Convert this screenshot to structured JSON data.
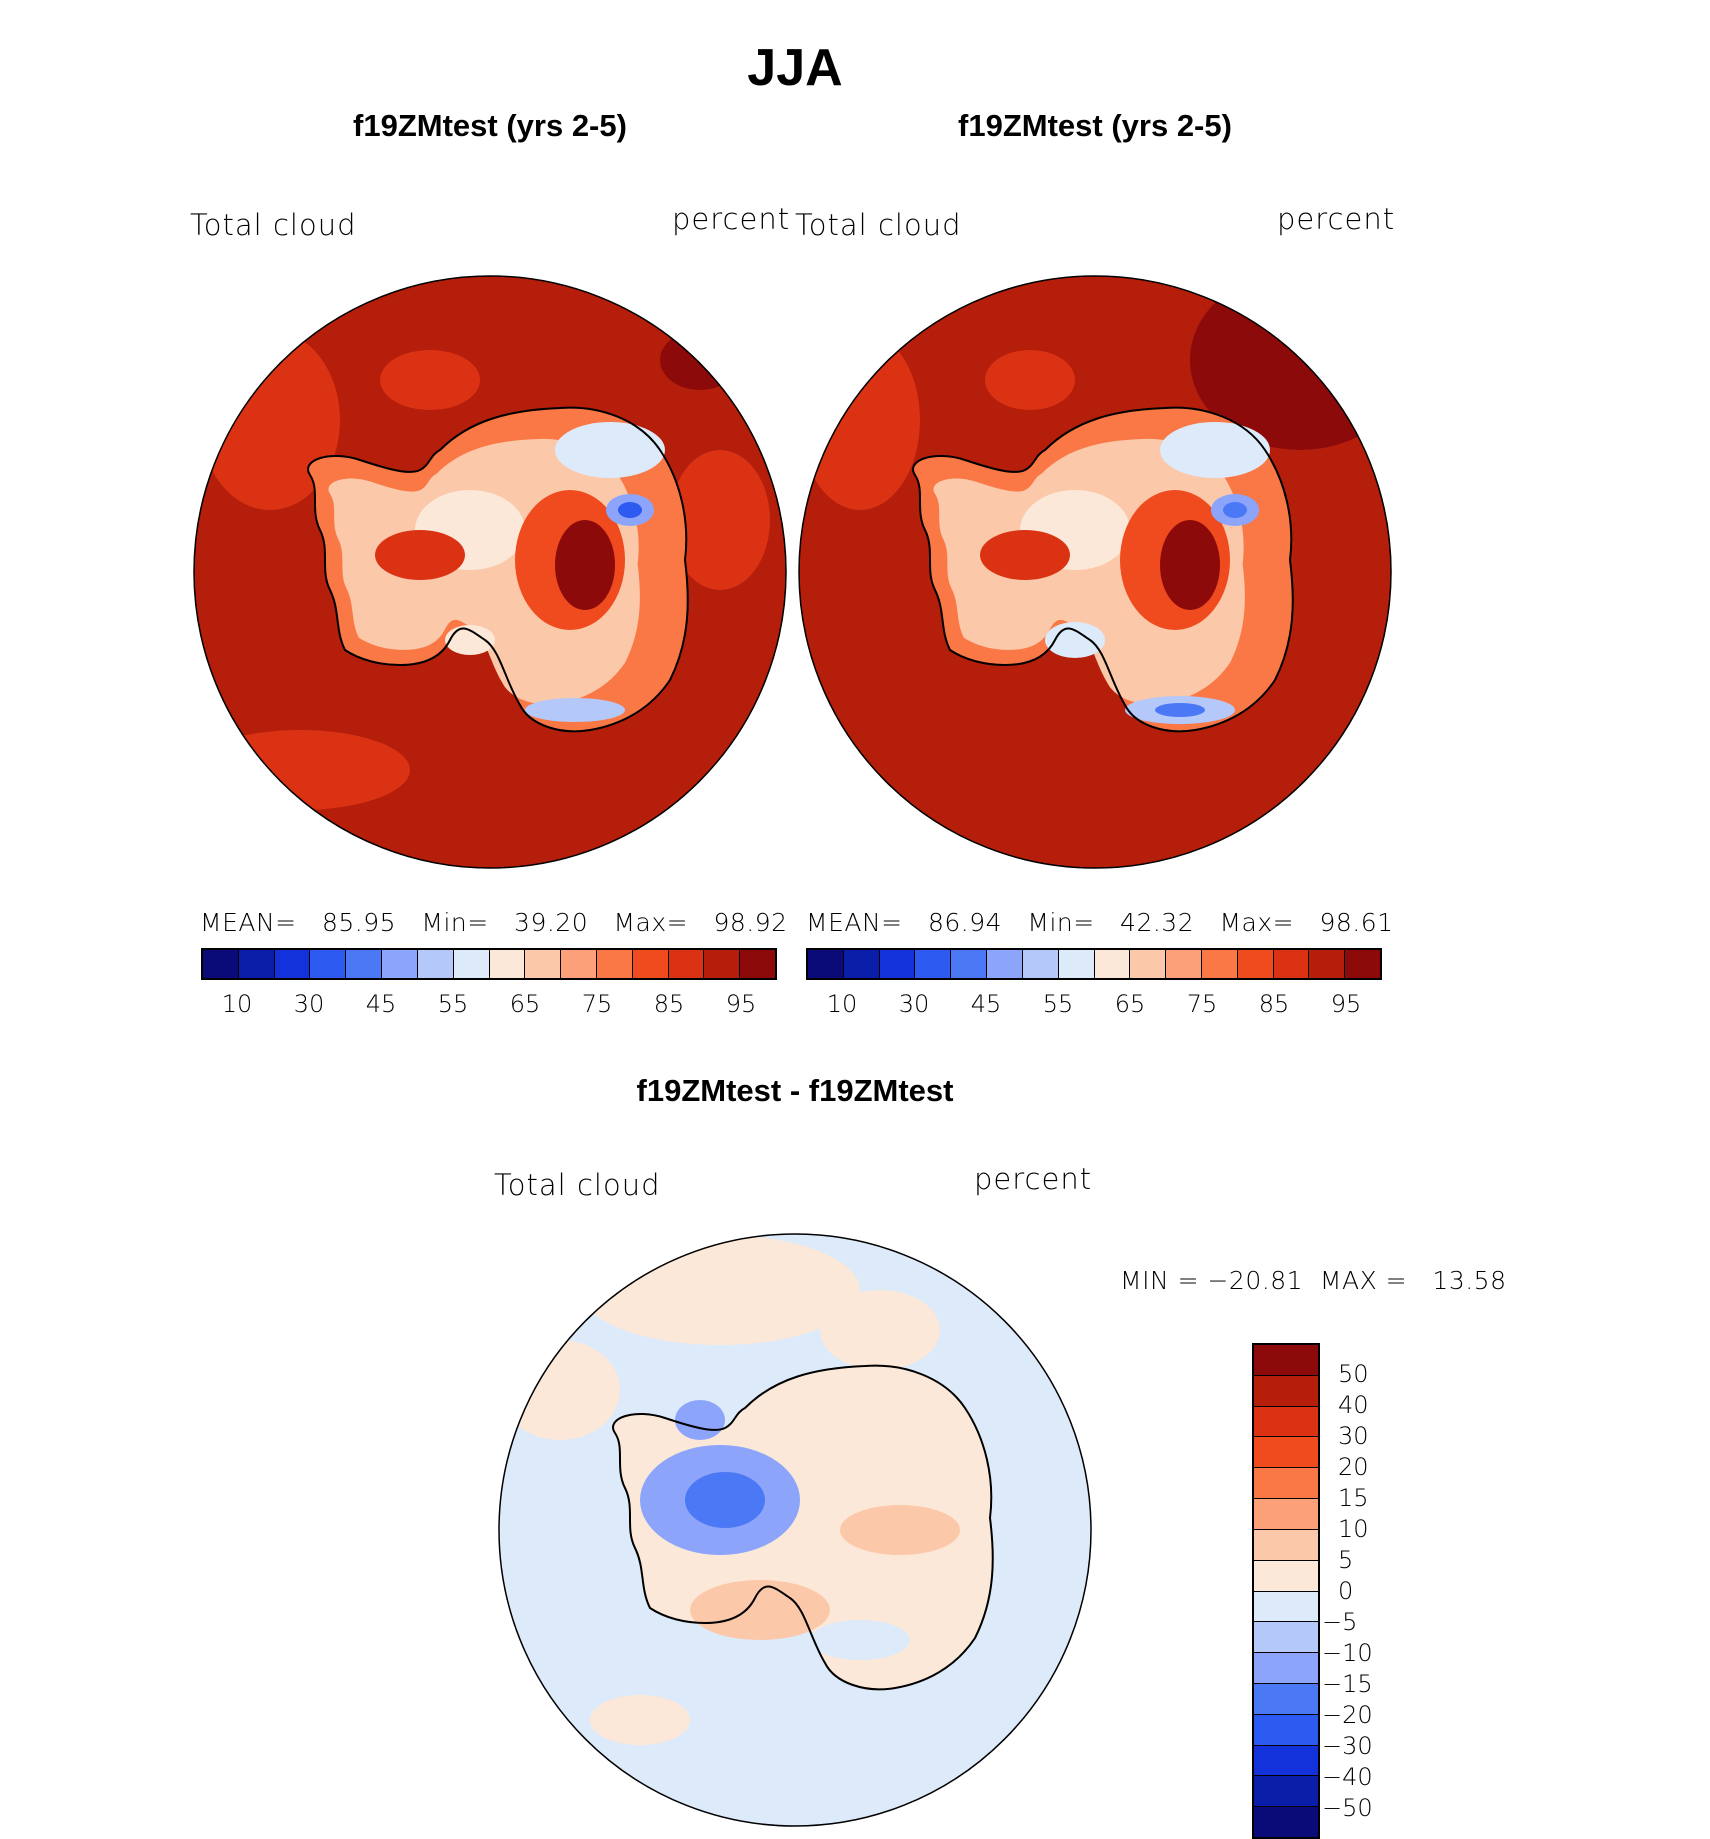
{
  "figure": {
    "season_title": "JJA",
    "panels": [
      {
        "title": "f19ZMtest (yrs 2-5)",
        "variable_label": "Total cloud",
        "units_label": "percent",
        "stats": {
          "mean_label": "MEAN=",
          "mean": "85.95",
          "min_label": "Min=",
          "min": "39.20",
          "max_label": "Max=",
          "max": "98.92"
        }
      },
      {
        "title": "f19ZMtest (yrs 2-5)",
        "variable_label": "Total cloud",
        "units_label": "percent",
        "stats": {
          "mean_label": "MEAN=",
          "mean": "86.94",
          "min_label": "Min=",
          "min": "42.32",
          "max_label": "Max=",
          "max": "98.61"
        }
      }
    ],
    "diff_panel": {
      "title": "f19ZMtest - f19ZMtest",
      "variable_label": "Total cloud",
      "units_label": "percent",
      "minmax_text": "MIN = −20.81  MAX =   13.58"
    },
    "colorbar_main": {
      "colors": [
        "#0a0a78",
        "#0a1eaa",
        "#1432dc",
        "#2d5af0",
        "#4b78f5",
        "#8ca5fa",
        "#b4c8fa",
        "#dceafa",
        "#fce8d8",
        "#fcc8aa",
        "#fca07a",
        "#fa7846",
        "#f04b1e",
        "#dc3214",
        "#b41e0a",
        "#8c0a0a"
      ],
      "tick_labels": [
        "10",
        "30",
        "45",
        "55",
        "65",
        "75",
        "85",
        "95"
      ]
    },
    "colorbar_diff": {
      "colors_top_to_bottom": [
        "#8c0a0a",
        "#b41e0a",
        "#dc3214",
        "#f04b1e",
        "#fa7846",
        "#fca07a",
        "#fcc8aa",
        "#fce8d8",
        "#dceafa",
        "#b4c8fa",
        "#8ca5fa",
        "#4b78f5",
        "#2d5af0",
        "#1432dc",
        "#0a1eaa",
        "#0a0a78"
      ],
      "tick_labels": [
        "50",
        "40",
        "30",
        "20",
        "15",
        "10",
        "5",
        "0",
        "−5",
        "−10",
        "−15",
        "−20",
        "−30",
        "−40",
        "−50"
      ]
    }
  }
}
